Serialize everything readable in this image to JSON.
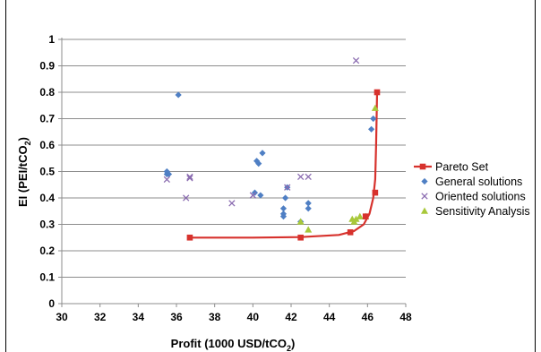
{
  "chart_data": {
    "type": "scatter",
    "title": "",
    "xlabel": "Profit (1000 USD/tCO",
    "xlabel_sub": "2",
    "xlabel_end": ")",
    "ylabel": "EI (PEI/tCO",
    "ylabel_sub": "2",
    "ylabel_end": ")",
    "xlim": [
      30,
      48
    ],
    "ylim": [
      0,
      1
    ],
    "xticks": [
      30,
      32,
      34,
      36,
      38,
      40,
      42,
      44,
      46,
      48
    ],
    "yticks": [
      0,
      0.1,
      0.2,
      0.3,
      0.4,
      0.5,
      0.6,
      0.7,
      0.8,
      0.9,
      1
    ],
    "xtick_labels": [
      "30",
      "32",
      "34",
      "36",
      "38",
      "40",
      "42",
      "44",
      "46",
      "48"
    ],
    "ytick_labels": [
      "0",
      "0.1",
      "0.2",
      "0.3",
      "0.4",
      "0.5",
      "0.6",
      "0.7",
      "0.8",
      "0.9",
      "1"
    ],
    "grid": "horizontal",
    "legend_position": "right",
    "series": [
      {
        "name": "Pareto Set",
        "kind": "line-with-square-markers",
        "color": "#d7322d",
        "markers": [
          {
            "x": 36.7,
            "y": 0.25
          },
          {
            "x": 42.5,
            "y": 0.25
          },
          {
            "x": 45.1,
            "y": 0.27
          },
          {
            "x": 45.9,
            "y": 0.33
          },
          {
            "x": 46.4,
            "y": 0.42
          },
          {
            "x": 46.5,
            "y": 0.8
          }
        ],
        "curve": [
          {
            "x": 36.7,
            "y": 0.25
          },
          {
            "x": 40.0,
            "y": 0.25
          },
          {
            "x": 42.5,
            "y": 0.252
          },
          {
            "x": 44.5,
            "y": 0.26
          },
          {
            "x": 45.3,
            "y": 0.275
          },
          {
            "x": 45.8,
            "y": 0.3
          },
          {
            "x": 46.1,
            "y": 0.34
          },
          {
            "x": 46.3,
            "y": 0.4
          },
          {
            "x": 46.4,
            "y": 0.47
          },
          {
            "x": 46.45,
            "y": 0.6
          },
          {
            "x": 46.5,
            "y": 0.8
          }
        ]
      },
      {
        "name": "General solutions",
        "kind": "diamond",
        "color": "#4f7fc4",
        "points": [
          {
            "x": 35.5,
            "y": 0.49
          },
          {
            "x": 35.5,
            "y": 0.5
          },
          {
            "x": 35.6,
            "y": 0.49
          },
          {
            "x": 36.1,
            "y": 0.79
          },
          {
            "x": 40.1,
            "y": 0.42
          },
          {
            "x": 40.2,
            "y": 0.54
          },
          {
            "x": 40.3,
            "y": 0.53
          },
          {
            "x": 40.4,
            "y": 0.41
          },
          {
            "x": 40.5,
            "y": 0.57
          },
          {
            "x": 41.6,
            "y": 0.36
          },
          {
            "x": 41.6,
            "y": 0.34
          },
          {
            "x": 41.6,
            "y": 0.33
          },
          {
            "x": 41.7,
            "y": 0.4
          },
          {
            "x": 41.8,
            "y": 0.44
          },
          {
            "x": 42.5,
            "y": 0.31
          },
          {
            "x": 42.9,
            "y": 0.38
          },
          {
            "x": 42.9,
            "y": 0.36
          },
          {
            "x": 46.2,
            "y": 0.66
          },
          {
            "x": 46.3,
            "y": 0.7
          }
        ]
      },
      {
        "name": "Oriented solutions",
        "kind": "cross",
        "color": "#8a6bb0",
        "points": [
          {
            "x": 35.5,
            "y": 0.47
          },
          {
            "x": 36.5,
            "y": 0.4
          },
          {
            "x": 36.7,
            "y": 0.48
          },
          {
            "x": 36.7,
            "y": 0.475
          },
          {
            "x": 38.9,
            "y": 0.38
          },
          {
            "x": 40.0,
            "y": 0.41
          },
          {
            "x": 41.8,
            "y": 0.44
          },
          {
            "x": 42.5,
            "y": 0.48
          },
          {
            "x": 42.9,
            "y": 0.48
          },
          {
            "x": 45.4,
            "y": 0.92
          }
        ]
      },
      {
        "name": "Sensitivity Analysis",
        "kind": "triangle",
        "color": "#a8c83a",
        "points": [
          {
            "x": 42.5,
            "y": 0.31
          },
          {
            "x": 42.9,
            "y": 0.28
          },
          {
            "x": 45.2,
            "y": 0.32
          },
          {
            "x": 45.3,
            "y": 0.31
          },
          {
            "x": 45.4,
            "y": 0.32
          },
          {
            "x": 45.6,
            "y": 0.33
          },
          {
            "x": 45.9,
            "y": 0.33
          },
          {
            "x": 46.4,
            "y": 0.74
          }
        ]
      }
    ]
  }
}
